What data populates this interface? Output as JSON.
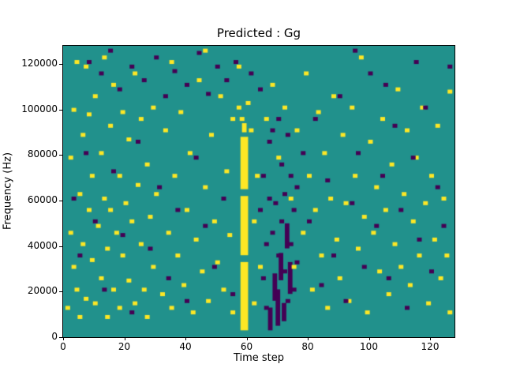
{
  "figure": {
    "background": "#ffffff"
  },
  "chart_data": {
    "type": "heatmap",
    "title": "Predicted : Gg",
    "xlabel": "Time step",
    "ylabel": "Frequency (Hz)",
    "x_range": [
      0,
      128
    ],
    "y_range": [
      0,
      128000
    ],
    "x_ticks": [
      0,
      20,
      40,
      60,
      80,
      100,
      120
    ],
    "y_ticks": [
      0,
      20000,
      40000,
      60000,
      80000,
      100000,
      120000
    ],
    "grid": false,
    "legend": "none",
    "freq_bin_hz": 1000,
    "colors": {
      "background": "#21918c",
      "high": "#fde725",
      "low": "#440154"
    },
    "bands": [
      {
        "t0": 58,
        "t1": 60.5,
        "f0": 3,
        "f1": 33,
        "c": 1
      },
      {
        "t0": 58,
        "t1": 60.5,
        "f0": 36,
        "f1": 62,
        "c": 1
      },
      {
        "t0": 58,
        "t1": 60.5,
        "f0": 65,
        "f1": 88,
        "c": 1
      },
      {
        "t0": 58.5,
        "t1": 60,
        "f0": 90,
        "f1": 94,
        "c": 1
      },
      {
        "t0": 67,
        "t1": 68.5,
        "f0": 3,
        "f1": 13,
        "c": 2
      },
      {
        "t0": 68.5,
        "t1": 70,
        "f0": 16,
        "f1": 28,
        "c": 2
      },
      {
        "t0": 69.5,
        "t1": 71,
        "f0": 5,
        "f1": 21,
        "c": 2
      },
      {
        "t0": 70.5,
        "t1": 72,
        "f0": 25,
        "f1": 37,
        "c": 2
      },
      {
        "t0": 71.5,
        "t1": 73,
        "f0": 7,
        "f1": 15,
        "c": 2
      },
      {
        "t0": 72.5,
        "t1": 74,
        "f0": 39,
        "f1": 50,
        "c": 2
      },
      {
        "t0": 73.5,
        "t1": 75,
        "f0": 19,
        "f1": 33,
        "c": 2
      }
    ],
    "yellow_cells": [
      [
        1,
        12
      ],
      [
        2,
        45
      ],
      [
        2,
        78
      ],
      [
        3,
        30
      ],
      [
        3,
        99
      ],
      [
        4,
        120
      ],
      [
        4,
        20
      ],
      [
        5,
        62
      ],
      [
        5,
        8
      ],
      [
        6,
        88
      ],
      [
        6,
        40
      ],
      [
        7,
        16
      ],
      [
        7,
        118
      ],
      [
        8,
        55
      ],
      [
        8,
        97
      ],
      [
        9,
        33
      ],
      [
        9,
        70
      ],
      [
        10,
        14
      ],
      [
        10,
        105
      ],
      [
        11,
        48
      ],
      [
        12,
        80
      ],
      [
        12,
        25
      ],
      [
        13,
        60
      ],
      [
        13,
        122
      ],
      [
        14,
        38
      ],
      [
        14,
        8
      ],
      [
        15,
        92
      ],
      [
        15,
        55
      ],
      [
        16,
        20
      ],
      [
        16,
        110
      ],
      [
        17,
        45
      ],
      [
        18,
        70
      ],
      [
        18,
        12
      ],
      [
        19,
        98
      ],
      [
        19,
        35
      ],
      [
        20,
        58
      ],
      [
        21,
        24
      ],
      [
        21,
        86
      ],
      [
        22,
        50
      ],
      [
        23,
        14
      ],
      [
        23,
        115
      ],
      [
        24,
        66
      ],
      [
        25,
        40
      ],
      [
        25,
        95
      ],
      [
        26,
        20
      ],
      [
        27,
        75
      ],
      [
        27,
        8
      ],
      [
        28,
        52
      ],
      [
        29,
        100
      ],
      [
        29,
        30
      ],
      [
        30,
        62
      ],
      [
        32,
        18
      ],
      [
        33,
        90
      ],
      [
        34,
        45
      ],
      [
        35,
        12
      ],
      [
        35,
        120
      ],
      [
        36,
        70
      ],
      [
        37,
        35
      ],
      [
        38,
        98
      ],
      [
        39,
        22
      ],
      [
        40,
        55
      ],
      [
        41,
        80
      ],
      [
        42,
        10
      ],
      [
        43,
        42
      ],
      [
        44,
        112
      ],
      [
        45,
        28
      ],
      [
        46,
        125
      ],
      [
        46,
        65
      ],
      [
        47,
        15
      ],
      [
        48,
        88
      ],
      [
        49,
        50
      ],
      [
        50,
        32
      ],
      [
        51,
        105
      ],
      [
        52,
        20
      ],
      [
        53,
        72
      ],
      [
        54,
        44
      ],
      [
        55,
        95
      ],
      [
        55,
        10
      ],
      [
        57,
        100
      ],
      [
        57,
        118
      ],
      [
        58,
        95
      ],
      [
        60,
        102
      ],
      [
        61,
        90
      ],
      [
        62,
        50
      ],
      [
        62,
        14
      ],
      [
        63,
        70
      ],
      [
        64,
        30
      ],
      [
        66,
        95
      ],
      [
        68,
        110
      ],
      [
        70,
        78
      ],
      [
        72,
        100
      ],
      [
        74,
        60
      ],
      [
        75,
        30
      ],
      [
        76,
        90
      ],
      [
        78,
        45
      ],
      [
        79,
        115
      ],
      [
        80,
        70
      ],
      [
        81,
        20
      ],
      [
        82,
        55
      ],
      [
        83,
        98
      ],
      [
        84,
        35
      ],
      [
        85,
        80
      ],
      [
        86,
        12
      ],
      [
        87,
        60
      ],
      [
        88,
        105
      ],
      [
        89,
        42
      ],
      [
        90,
        25
      ],
      [
        91,
        88
      ],
      [
        92,
        58
      ],
      [
        93,
        15
      ],
      [
        94,
        100
      ],
      [
        95,
        70
      ],
      [
        96,
        38
      ],
      [
        97,
        122
      ],
      [
        98,
        52
      ],
      [
        99,
        10
      ],
      [
        100,
        85
      ],
      [
        101,
        45
      ],
      [
        102,
        65
      ],
      [
        103,
        28
      ],
      [
        104,
        95
      ],
      [
        105,
        55
      ],
      [
        106,
        18
      ],
      [
        107,
        75
      ],
      [
        108,
        40
      ],
      [
        109,
        108
      ],
      [
        110,
        30
      ],
      [
        111,
        62
      ],
      [
        112,
        90
      ],
      [
        113,
        22
      ],
      [
        114,
        50
      ],
      [
        115,
        78
      ],
      [
        116,
        35
      ],
      [
        117,
        100
      ],
      [
        118,
        58
      ],
      [
        119,
        14
      ],
      [
        120,
        70
      ],
      [
        121,
        42
      ],
      [
        122,
        92
      ],
      [
        123,
        25
      ],
      [
        124,
        60
      ],
      [
        125,
        35
      ],
      [
        126,
        107
      ],
      [
        126,
        10
      ]
    ],
    "purple_cells": [
      [
        8,
        120
      ],
      [
        12,
        115
      ],
      [
        15,
        125
      ],
      [
        18,
        108
      ],
      [
        22,
        118
      ],
      [
        26,
        112
      ],
      [
        30,
        122
      ],
      [
        33,
        105
      ],
      [
        36,
        116
      ],
      [
        40,
        110
      ],
      [
        44,
        124
      ],
      [
        47,
        106
      ],
      [
        50,
        118
      ],
      [
        53,
        112
      ],
      [
        56,
        120
      ],
      [
        61,
        115
      ],
      [
        64,
        108
      ],
      [
        3,
        60
      ],
      [
        5,
        35
      ],
      [
        7,
        80
      ],
      [
        10,
        50
      ],
      [
        13,
        20
      ],
      [
        16,
        72
      ],
      [
        19,
        44
      ],
      [
        22,
        10
      ],
      [
        24,
        85
      ],
      [
        28,
        38
      ],
      [
        31,
        65
      ],
      [
        34,
        25
      ],
      [
        37,
        55
      ],
      [
        40,
        15
      ],
      [
        43,
        78
      ],
      [
        46,
        48
      ],
      [
        49,
        30
      ],
      [
        52,
        60
      ],
      [
        55,
        18
      ],
      [
        64,
        55
      ],
      [
        65,
        25
      ],
      [
        65,
        70
      ],
      [
        66,
        40
      ],
      [
        66,
        12
      ],
      [
        67,
        60
      ],
      [
        67,
        85
      ],
      [
        68,
        45
      ],
      [
        68,
        90
      ],
      [
        69,
        58
      ],
      [
        70,
        35
      ],
      [
        70,
        95
      ],
      [
        71,
        50
      ],
      [
        71,
        75
      ],
      [
        72,
        28
      ],
      [
        72,
        62
      ],
      [
        73,
        15
      ],
      [
        73,
        88
      ],
      [
        74,
        40
      ],
      [
        74,
        70
      ],
      [
        75,
        55
      ],
      [
        75,
        20
      ],
      [
        76,
        65
      ],
      [
        76,
        32
      ],
      [
        78,
        80
      ],
      [
        80,
        50
      ],
      [
        82,
        95
      ],
      [
        84,
        22
      ],
      [
        86,
        68
      ],
      [
        88,
        35
      ],
      [
        90,
        105
      ],
      [
        92,
        15
      ],
      [
        94,
        58
      ],
      [
        96,
        80
      ],
      [
        98,
        30
      ],
      [
        100,
        115
      ],
      [
        102,
        48
      ],
      [
        104,
        70
      ],
      [
        106,
        25
      ],
      [
        108,
        92
      ],
      [
        110,
        55
      ],
      [
        112,
        12
      ],
      [
        114,
        78
      ],
      [
        116,
        42
      ],
      [
        118,
        100
      ],
      [
        120,
        28
      ],
      [
        122,
        65
      ],
      [
        124,
        48
      ],
      [
        126,
        118
      ],
      [
        95,
        125
      ],
      [
        105,
        110
      ],
      [
        115,
        120
      ]
    ]
  }
}
